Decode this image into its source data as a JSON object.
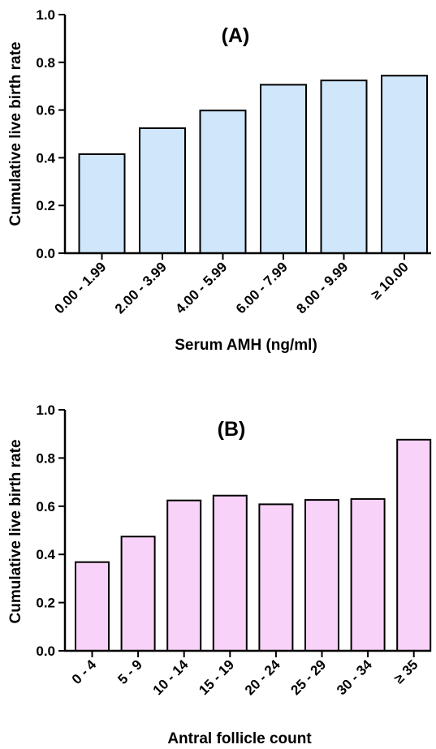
{
  "chart_data": [
    {
      "type": "bar",
      "panel_label": "(A)",
      "xlabel": "Serum AMH (ng/ml)",
      "ylabel": "Cumulative live birth rate",
      "categories": [
        "0.00 - 1.99",
        "2.00 - 3.99",
        "4.00 - 5.99",
        "6.00 - 7.99",
        "8.00 - 9.99",
        "≥ 10.00"
      ],
      "values": [
        0.415,
        0.524,
        0.598,
        0.706,
        0.724,
        0.744
      ],
      "ylim": [
        0,
        1.0
      ],
      "yticks": [
        "0.0",
        "0.2",
        "0.4",
        "0.6",
        "0.8",
        "1.0"
      ],
      "bar_color": "#cfe6fb",
      "grid": false
    },
    {
      "type": "bar",
      "panel_label": "(B)",
      "xlabel": "Antral follicle count",
      "ylabel": "Cumulative live birth rate",
      "categories": [
        "0 - 4",
        "5 - 9",
        "10 - 14",
        "15 - 19",
        "20 - 24",
        "25 - 29",
        "30 - 34",
        "≥ 35"
      ],
      "values": [
        0.368,
        0.474,
        0.624,
        0.644,
        0.608,
        0.626,
        0.63,
        0.876
      ],
      "ylim": [
        0,
        1.0
      ],
      "yticks": [
        "0.0",
        "0.2",
        "0.4",
        "0.6",
        "0.8",
        "1.0"
      ],
      "bar_color": "#f8d2f8",
      "grid": false
    }
  ]
}
